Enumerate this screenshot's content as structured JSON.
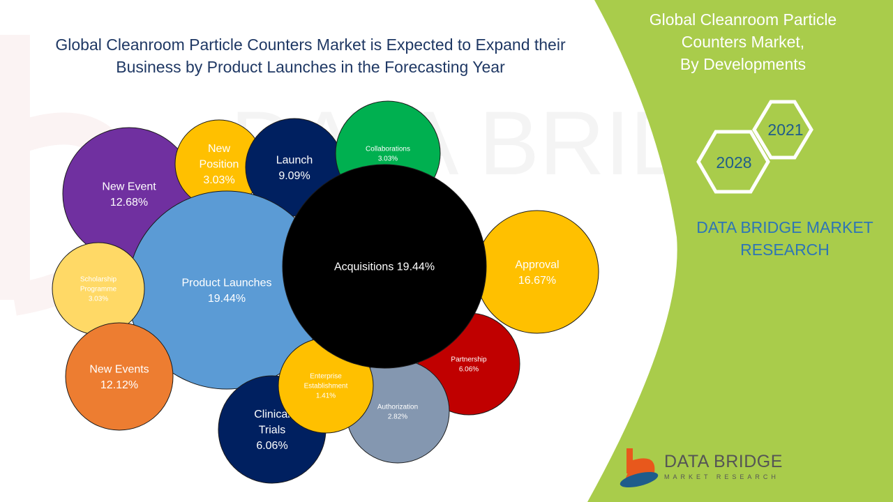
{
  "title": {
    "line1": "Global Cleanroom Particle Counters Market is Expected to Expand their",
    "line2": "Business by Product Launches in the Forecasting Year"
  },
  "side_title": {
    "line1": "Global Cleanroom Particle",
    "line2": "Counters Market,",
    "line3": "By Developments"
  },
  "years": {
    "start": "2021",
    "end": "2028"
  },
  "brand": {
    "line1": "DATA BRIDGE MARKET",
    "line2": "RESEARCH"
  },
  "logo": {
    "main": "DATA BRIDGE",
    "sub": "MARKET RESEARCH"
  },
  "colors": {
    "panel_green": "#a9cc4b",
    "title_blue": "#1f3864",
    "brand_blue": "#2e75b6"
  },
  "chart_data": {
    "type": "bubble",
    "series": [
      {
        "label": "New Event",
        "value": "12.68%",
        "color": "#7030a0"
      },
      {
        "label": "New Position",
        "value": "3.03%",
        "color": "#ffc000"
      },
      {
        "label": "Launch",
        "value": "9.09%",
        "color": "#002060"
      },
      {
        "label": "Collaborations",
        "value": "3.03%",
        "color": "#00b050"
      },
      {
        "label": "Product Launches",
        "value": "19.44%",
        "color": "#5b9bd5"
      },
      {
        "label": "Acquisitions",
        "value": "19.44%",
        "color": "#000000"
      },
      {
        "label": "Approval",
        "value": "16.67%",
        "color": "#ffc000"
      },
      {
        "label": "Scholarship Programme",
        "value": "3.03%",
        "color": "#ffd966"
      },
      {
        "label": "New Events",
        "value": "12.12%",
        "color": "#ed7d31"
      },
      {
        "label": "Partnership",
        "value": "6.06%",
        "color": "#c00000"
      },
      {
        "label": "Authorization",
        "value": "2.82%",
        "color": "#8497b0"
      },
      {
        "label": "Clinical Trials",
        "value": "6.06%",
        "color": "#002060"
      },
      {
        "label": "Enterprise Establishment",
        "value": "1.41%",
        "color": "#ffc000"
      }
    ]
  }
}
